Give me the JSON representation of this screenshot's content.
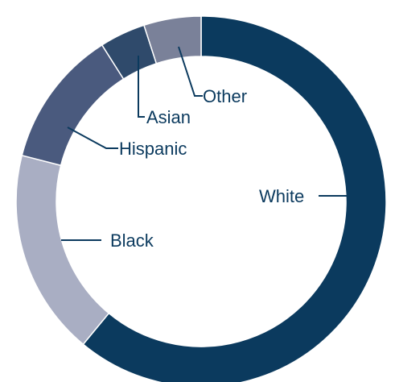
{
  "chart_data": {
    "type": "pie",
    "title": "",
    "slices": [
      {
        "label": "White",
        "value": 61,
        "color": "#0b3a5e"
      },
      {
        "label": "Black",
        "value": 18,
        "color": "#a9aec3"
      },
      {
        "label": "Hispanic",
        "value": 12,
        "color": "#4a5a7e"
      },
      {
        "label": "Asian",
        "value": 4,
        "color": "#2f4a6b"
      },
      {
        "label": "Other",
        "value": 5,
        "color": "#7a8199"
      }
    ],
    "label_color": "#0b3a5e",
    "background": "#ffffff"
  }
}
